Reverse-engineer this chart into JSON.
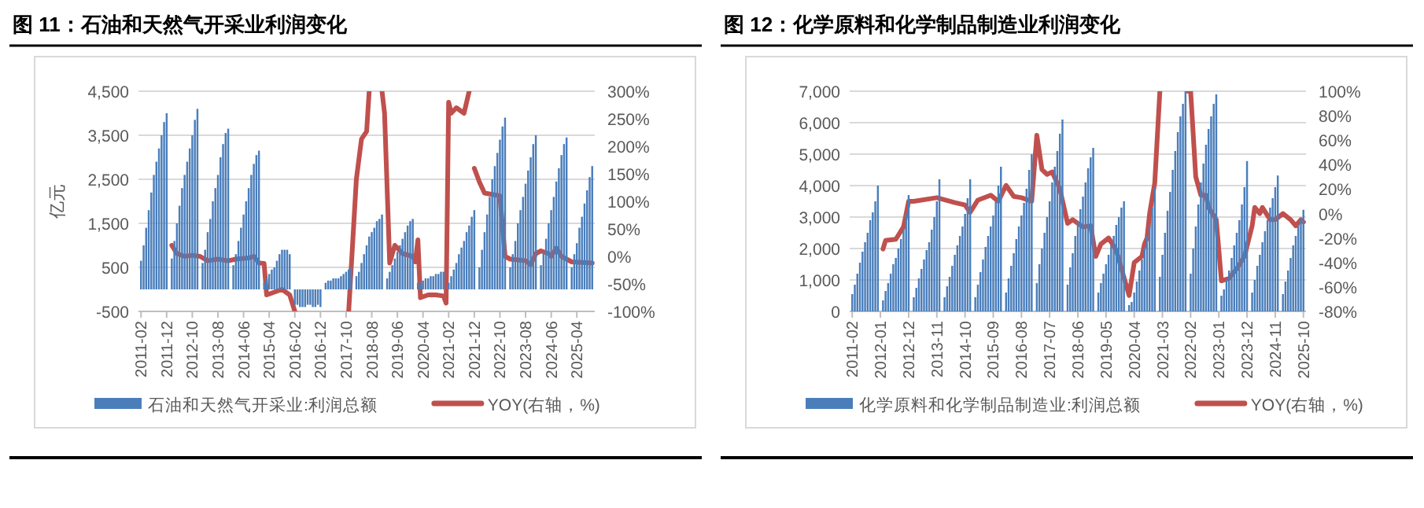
{
  "chart_data": [
    {
      "type": "bar",
      "title": "图 11：石油和天然气开采业利润变化",
      "ylabel": "亿元",
      "grid": "y",
      "legend": "bottom",
      "xlim": [
        "2011-01",
        "2025-11"
      ],
      "xticks": [
        {
          "value": "2011-02",
          "label": "2011-02"
        },
        {
          "value": "2011-12",
          "label": "2011-12"
        },
        {
          "value": "2012-10",
          "label": "2012-10"
        },
        {
          "value": "2013-08",
          "label": "2013-08"
        },
        {
          "value": "2014-06",
          "label": "2014-06"
        },
        {
          "value": "2015-04",
          "label": "2015-04"
        },
        {
          "value": "2016-02",
          "label": "2016-02"
        },
        {
          "value": "2016-12",
          "label": "2016-12"
        },
        {
          "value": "2017-10",
          "label": "2017-10"
        },
        {
          "value": "2018-08",
          "label": "2018-08"
        },
        {
          "value": "2019-06",
          "label": "2019-06"
        },
        {
          "value": "2020-04",
          "label": "2020-04"
        },
        {
          "value": "2021-02",
          "label": "2021-02"
        },
        {
          "value": "2021-12",
          "label": "2021-12"
        },
        {
          "value": "2022-10",
          "label": "2022-10"
        },
        {
          "value": "2023-08",
          "label": "2023-08"
        },
        {
          "value": "2024-06",
          "label": "2024-06"
        },
        {
          "value": "2025-04",
          "label": "2025-04"
        }
      ],
      "ylim": [
        -500,
        4500
      ],
      "yticks": [
        {
          "value": -500,
          "label": "-500"
        },
        {
          "value": 500,
          "label": "500"
        },
        {
          "value": 1500,
          "label": "1,500"
        },
        {
          "value": 2500,
          "label": "2,500"
        },
        {
          "value": 3500,
          "label": "3,500"
        },
        {
          "value": 4500,
          "label": "4,500"
        }
      ],
      "y2lim": [
        -100,
        300
      ],
      "y2ticks": [
        {
          "value": -100,
          "label": "-100%"
        },
        {
          "value": -50,
          "label": "-50%"
        },
        {
          "value": 0,
          "label": "0%"
        },
        {
          "value": 50,
          "label": "50%"
        },
        {
          "value": 100,
          "label": "100%"
        },
        {
          "value": 150,
          "label": "150%"
        },
        {
          "value": 200,
          "label": "200%"
        },
        {
          "value": 250,
          "label": "250%"
        },
        {
          "value": 300,
          "label": "300%"
        }
      ],
      "series": [
        {
          "name": "石油和天然气开采业:利润总额",
          "color": "#4a7ebb",
          "x": [
            "2011-02",
            "2011-03",
            "2011-04",
            "2011-05",
            "2011-06",
            "2011-07",
            "2011-08",
            "2011-09",
            "2011-10",
            "2011-11",
            "2011-12",
            "2012-02",
            "2012-03",
            "2012-04",
            "2012-05",
            "2012-06",
            "2012-07",
            "2012-08",
            "2012-09",
            "2012-10",
            "2012-11",
            "2012-12",
            "2013-02",
            "2013-03",
            "2013-04",
            "2013-05",
            "2013-06",
            "2013-07",
            "2013-08",
            "2013-09",
            "2013-10",
            "2013-11",
            "2013-12",
            "2014-02",
            "2014-03",
            "2014-04",
            "2014-05",
            "2014-06",
            "2014-07",
            "2014-08",
            "2014-09",
            "2014-10",
            "2014-11",
            "2014-12",
            "2015-02",
            "2015-03",
            "2015-04",
            "2015-05",
            "2015-06",
            "2015-07",
            "2015-08",
            "2015-09",
            "2015-10",
            "2015-11",
            "2015-12",
            "2016-02",
            "2016-03",
            "2016-04",
            "2016-05",
            "2016-06",
            "2016-07",
            "2016-08",
            "2016-09",
            "2016-10",
            "2016-11",
            "2016-12",
            "2017-02",
            "2017-03",
            "2017-04",
            "2017-05",
            "2017-06",
            "2017-07",
            "2017-08",
            "2017-09",
            "2017-10",
            "2017-11",
            "2017-12",
            "2018-02",
            "2018-03",
            "2018-04",
            "2018-05",
            "2018-06",
            "2018-07",
            "2018-08",
            "2018-09",
            "2018-10",
            "2018-11",
            "2018-12",
            "2019-02",
            "2019-03",
            "2019-04",
            "2019-05",
            "2019-06",
            "2019-07",
            "2019-08",
            "2019-09",
            "2019-10",
            "2019-11",
            "2019-12",
            "2020-02",
            "2020-03",
            "2020-04",
            "2020-05",
            "2020-06",
            "2020-07",
            "2020-08",
            "2020-09",
            "2020-10",
            "2020-11",
            "2020-12",
            "2021-02",
            "2021-03",
            "2021-04",
            "2021-05",
            "2021-06",
            "2021-07",
            "2021-08",
            "2021-09",
            "2021-10",
            "2021-11",
            "2021-12",
            "2022-02",
            "2022-03",
            "2022-04",
            "2022-05",
            "2022-06",
            "2022-07",
            "2022-08",
            "2022-09",
            "2022-10",
            "2022-11",
            "2022-12",
            "2023-02",
            "2023-03",
            "2023-04",
            "2023-05",
            "2023-06",
            "2023-07",
            "2023-08",
            "2023-09",
            "2023-10",
            "2023-11",
            "2023-12",
            "2024-02",
            "2024-03",
            "2024-04",
            "2024-05",
            "2024-06",
            "2024-07",
            "2024-08",
            "2024-09",
            "2024-10",
            "2024-11",
            "2024-12",
            "2025-02",
            "2025-03",
            "2025-04",
            "2025-05",
            "2025-06",
            "2025-07",
            "2025-08",
            "2025-09",
            "2025-10"
          ],
          "values": [
            650,
            1000,
            1400,
            1800,
            2200,
            2600,
            2900,
            3200,
            3500,
            3800,
            4000,
            700,
            1100,
            1500,
            1900,
            2300,
            2600,
            2900,
            3200,
            3500,
            3850,
            4100,
            600,
            900,
            1300,
            1600,
            2000,
            2300,
            2600,
            3000,
            3300,
            3550,
            3650,
            550,
            800,
            1100,
            1400,
            1700,
            2000,
            2300,
            2600,
            2850,
            3050,
            3150,
            150,
            250,
            350,
            450,
            500,
            650,
            800,
            900,
            900,
            900,
            800,
            -350,
            -350,
            -400,
            -400,
            -400,
            -350,
            -350,
            -400,
            -400,
            -350,
            -400,
            150,
            200,
            200,
            250,
            250,
            250,
            300,
            350,
            400,
            450,
            500,
            300,
            400,
            600,
            800,
            1000,
            1200,
            1300,
            1400,
            1550,
            1600,
            1700,
            250,
            400,
            550,
            700,
            850,
            1000,
            1150,
            1300,
            1450,
            1550,
            1600,
            150,
            150,
            200,
            250,
            250,
            300,
            300,
            350,
            350,
            400,
            400,
            150,
            300,
            450,
            600,
            800,
            950,
            1100,
            1300,
            1450,
            1650,
            1800,
            500,
            900,
            1300,
            1700,
            2100,
            2500,
            2800,
            3100,
            3400,
            3700,
            3900,
            500,
            800,
            1100,
            1500,
            1800,
            2100,
            2400,
            2700,
            3000,
            3300,
            3500,
            550,
            850,
            1150,
            1500,
            1800,
            2100,
            2450,
            2750,
            3050,
            3300,
            3450,
            500,
            800,
            1050,
            1400,
            1650,
            1950,
            2250,
            2550,
            2800
          ]
        },
        {
          "name": "YOY(右轴，%)",
          "type": "line",
          "axis": "y2",
          "color": "#c0504d",
          "x": [
            "2012-02",
            "2012-04",
            "2012-07",
            "2012-10",
            "2013-01",
            "2013-04",
            "2013-08",
            "2013-12",
            "2014-03",
            "2014-08",
            "2014-10",
            "2014-12",
            "2015-02",
            "2015-03",
            "2015-06",
            "2015-09",
            "2015-12",
            "2016-02",
            "2016-03",
            "2017-11",
            "2018-02",
            "2018-04",
            "2018-06",
            "2018-07",
            "2018-08",
            "2018-12",
            "2019-01",
            "2019-03",
            "2019-05",
            "2019-08",
            "2019-12",
            "2020-01",
            "2020-02",
            "2020-03",
            "2020-06",
            "2020-09",
            "2020-12",
            "2021-01",
            "2021-02",
            "2021-03",
            "2021-05",
            "2021-08",
            "2021-10",
            "2021-11",
            "2021-12",
            "2022-02",
            "2022-04",
            "2022-10",
            "2022-12",
            "2023-02",
            "2023-08",
            "2023-10",
            "2023-12",
            "2024-02",
            "2024-05",
            "2024-06",
            "2024-08",
            "2024-10",
            "2025-02",
            "2025-10"
          ],
          "values": [
            20,
            5,
            0,
            2,
            0,
            -8,
            -5,
            -8,
            -5,
            -3,
            0,
            -12,
            -13,
            -70,
            -65,
            -60,
            -70,
            -100,
            null,
            -100,
            140,
            213,
            227,
            300,
            null,
            300,
            260,
            -12,
            20,
            5,
            0,
            -10,
            30,
            -75,
            -70,
            -70,
            -72,
            -85,
            280,
            260,
            270,
            260,
            300,
            null,
            160,
            135,
            115,
            110,
            0,
            -5,
            -8,
            -15,
            5,
            10,
            5,
            0,
            15,
            0,
            -10,
            -12
          ]
        }
      ]
    },
    {
      "type": "bar",
      "title": "图 12：化学原料和化学制品制造业利润变化",
      "grid": "y",
      "legend": "bottom",
      "xlim": [
        "2011-01",
        "2025-11"
      ],
      "xticks": [
        {
          "value": "2011-02",
          "label": "2011-02"
        },
        {
          "value": "2012-01",
          "label": "2012-01"
        },
        {
          "value": "2012-12",
          "label": "2012-12"
        },
        {
          "value": "2013-11",
          "label": "2013-11"
        },
        {
          "value": "2014-10",
          "label": "2014-10"
        },
        {
          "value": "2015-09",
          "label": "2015-09"
        },
        {
          "value": "2016-08",
          "label": "2016-08"
        },
        {
          "value": "2017-07",
          "label": "2017-07"
        },
        {
          "value": "2018-06",
          "label": "2018-06"
        },
        {
          "value": "2019-05",
          "label": "2019-05"
        },
        {
          "value": "2020-04",
          "label": "2020-04"
        },
        {
          "value": "2021-03",
          "label": "2021-03"
        },
        {
          "value": "2022-02",
          "label": "2022-02"
        },
        {
          "value": "2023-01",
          "label": "2023-01"
        },
        {
          "value": "2023-12",
          "label": "2023-12"
        },
        {
          "value": "2024-11",
          "label": "2024-11"
        },
        {
          "value": "2025-10",
          "label": "2025-10"
        }
      ],
      "ylim": [
        0,
        7000
      ],
      "yticks": [
        {
          "value": 0,
          "label": "0"
        },
        {
          "value": 1000,
          "label": "1,000"
        },
        {
          "value": 2000,
          "label": "2,000"
        },
        {
          "value": 3000,
          "label": "3,000"
        },
        {
          "value": 4000,
          "label": "4,000"
        },
        {
          "value": 5000,
          "label": "5,000"
        },
        {
          "value": 6000,
          "label": "6,000"
        },
        {
          "value": 7000,
          "label": "7,000"
        }
      ],
      "y2lim": [
        -80,
        100
      ],
      "y2ticks": [
        {
          "value": -80,
          "label": "-80%"
        },
        {
          "value": -60,
          "label": "-60%"
        },
        {
          "value": -40,
          "label": "-40%"
        },
        {
          "value": -20,
          "label": "-20%"
        },
        {
          "value": 0,
          "label": "0%"
        },
        {
          "value": 20,
          "label": "20%"
        },
        {
          "value": 40,
          "label": "40%"
        },
        {
          "value": 60,
          "label": "60%"
        },
        {
          "value": 80,
          "label": "80%"
        },
        {
          "value": 100,
          "label": "100%"
        }
      ],
      "series": [
        {
          "name": "化学原料和化学制品制造业:利润总额",
          "color": "#4a7ebb",
          "x": [
            "2011-02",
            "2011-03",
            "2011-04",
            "2011-05",
            "2011-06",
            "2011-07",
            "2011-08",
            "2011-09",
            "2011-10",
            "2011-11",
            "2011-12",
            "2012-02",
            "2012-03",
            "2012-04",
            "2012-05",
            "2012-06",
            "2012-07",
            "2012-08",
            "2012-09",
            "2012-10",
            "2012-11",
            "2012-12",
            "2013-02",
            "2013-03",
            "2013-04",
            "2013-05",
            "2013-06",
            "2013-07",
            "2013-08",
            "2013-09",
            "2013-10",
            "2013-11",
            "2013-12",
            "2014-02",
            "2014-03",
            "2014-04",
            "2014-05",
            "2014-06",
            "2014-07",
            "2014-08",
            "2014-09",
            "2014-10",
            "2014-11",
            "2014-12",
            "2015-02",
            "2015-03",
            "2015-04",
            "2015-05",
            "2015-06",
            "2015-07",
            "2015-08",
            "2015-09",
            "2015-10",
            "2015-11",
            "2015-12",
            "2016-02",
            "2016-03",
            "2016-04",
            "2016-05",
            "2016-06",
            "2016-07",
            "2016-08",
            "2016-09",
            "2016-10",
            "2016-11",
            "2016-12",
            "2017-02",
            "2017-03",
            "2017-04",
            "2017-05",
            "2017-06",
            "2017-07",
            "2017-08",
            "2017-09",
            "2017-10",
            "2017-11",
            "2017-12",
            "2018-02",
            "2018-03",
            "2018-04",
            "2018-05",
            "2018-06",
            "2018-07",
            "2018-08",
            "2018-09",
            "2018-10",
            "2018-11",
            "2018-12",
            "2019-02",
            "2019-03",
            "2019-04",
            "2019-05",
            "2019-06",
            "2019-07",
            "2019-08",
            "2019-09",
            "2019-10",
            "2019-11",
            "2019-12",
            "2020-02",
            "2020-03",
            "2020-04",
            "2020-05",
            "2020-06",
            "2020-07",
            "2020-08",
            "2020-09",
            "2020-10",
            "2020-11",
            "2020-12",
            "2021-02",
            "2021-03",
            "2021-04",
            "2021-05",
            "2021-06",
            "2021-07",
            "2021-08",
            "2021-09",
            "2021-10",
            "2021-11",
            "2021-12",
            "2022-02",
            "2022-03",
            "2022-04",
            "2022-05",
            "2022-06",
            "2022-07",
            "2022-08",
            "2022-09",
            "2022-10",
            "2022-11",
            "2022-12",
            "2023-02",
            "2023-03",
            "2023-04",
            "2023-05",
            "2023-06",
            "2023-07",
            "2023-08",
            "2023-09",
            "2023-10",
            "2023-11",
            "2023-12",
            "2024-02",
            "2024-03",
            "2024-04",
            "2024-05",
            "2024-06",
            "2024-07",
            "2024-08",
            "2024-09",
            "2024-10",
            "2024-11",
            "2024-12",
            "2025-02",
            "2025-03",
            "2025-04",
            "2025-05",
            "2025-06",
            "2025-07",
            "2025-08",
            "2025-09",
            "2025-10"
          ],
          "values": [
            550,
            850,
            1200,
            1550,
            1900,
            2200,
            2500,
            2900,
            3150,
            3500,
            4000,
            350,
            650,
            900,
            1200,
            1500,
            1700,
            2000,
            2300,
            2600,
            3100,
            3700,
            450,
            750,
            1050,
            1350,
            1650,
            1950,
            2200,
            2600,
            3000,
            3500,
            4200,
            450,
            800,
            1100,
            1450,
            1800,
            2100,
            2400,
            2700,
            3100,
            3600,
            4200,
            450,
            850,
            1250,
            1650,
            2050,
            2400,
            2700,
            3050,
            3500,
            4000,
            4600,
            600,
            1050,
            1450,
            1850,
            2300,
            2700,
            3050,
            3450,
            3900,
            4500,
            5000,
            900,
            1500,
            2000,
            2500,
            3000,
            3500,
            4100,
            4600,
            5100,
            5650,
            6100,
            850,
            1400,
            1850,
            2400,
            2850,
            3250,
            3650,
            4100,
            4550,
            4900,
            5200,
            600,
            900,
            1200,
            1500,
            1800,
            2100,
            2400,
            2750,
            3000,
            3300,
            3500,
            200,
            300,
            600,
            950,
            1300,
            1650,
            2050,
            2400,
            2750,
            3300,
            3950,
            1100,
            1800,
            2500,
            3200,
            3800,
            4500,
            5100,
            5700,
            6200,
            6600,
            7000,
            1200,
            2000,
            2700,
            3400,
            4100,
            4700,
            5300,
            5800,
            6200,
            6600,
            6900,
            500,
            700,
            1000,
            1300,
            1700,
            2100,
            2500,
            2900,
            3400,
            3950,
            4780,
            600,
            1000,
            1450,
            1800,
            2200,
            2550,
            2900,
            3300,
            3600,
            3950,
            4320,
            550,
            950,
            1300,
            1700,
            2100,
            2400,
            2750,
            2950,
            3230
          ]
        },
        {
          "name": "YOY(右轴，%)",
          "type": "line",
          "axis": "y2",
          "color": "#c0504d",
          "x": [
            "2012-02",
            "2012-03",
            "2012-07",
            "2012-10",
            "2012-12",
            "2013-02",
            "2013-11",
            "2014-06",
            "2014-10",
            "2014-12",
            "2015-03",
            "2015-08",
            "2015-11",
            "2016-02",
            "2016-05",
            "2016-08",
            "2016-12",
            "2017-02",
            "2017-04",
            "2017-06",
            "2017-08",
            "2017-11",
            "2018-02",
            "2018-04",
            "2018-08",
            "2018-11",
            "2019-01",
            "2019-03",
            "2019-06",
            "2019-09",
            "2019-11",
            "2020-02",
            "2020-04",
            "2020-07",
            "2020-08",
            "2020-09",
            "2020-10",
            "2020-12",
            "2021-02",
            "2021-03",
            "2022-01",
            "2022-02",
            "2022-04",
            "2022-06",
            "2022-08",
            "2022-09",
            "2022-12",
            "2023-02",
            "2023-05",
            "2023-08",
            "2023-11",
            "2024-02",
            "2024-03",
            "2024-05",
            "2024-06",
            "2024-09",
            "2024-11",
            "2025-02",
            "2025-05",
            "2025-07",
            "2025-09",
            "2025-10"
          ],
          "values": [
            -29,
            -22,
            -21,
            -11,
            10,
            10,
            13,
            9,
            7,
            1,
            11,
            15,
            10,
            23,
            14,
            13,
            10,
            64,
            36,
            32,
            34,
            20,
            -8,
            -5,
            -11,
            -10,
            -35,
            -25,
            -20,
            -30,
            -45,
            -67,
            -40,
            -35,
            -25,
            -20,
            0,
            25,
            100,
            null,
            100,
            100,
            30,
            15,
            15,
            5,
            -5,
            -55,
            -53,
            -45,
            -35,
            -10,
            5,
            0,
            5,
            -5,
            -5,
            0,
            -5,
            -10,
            -5,
            -7
          ]
        }
      ]
    }
  ]
}
